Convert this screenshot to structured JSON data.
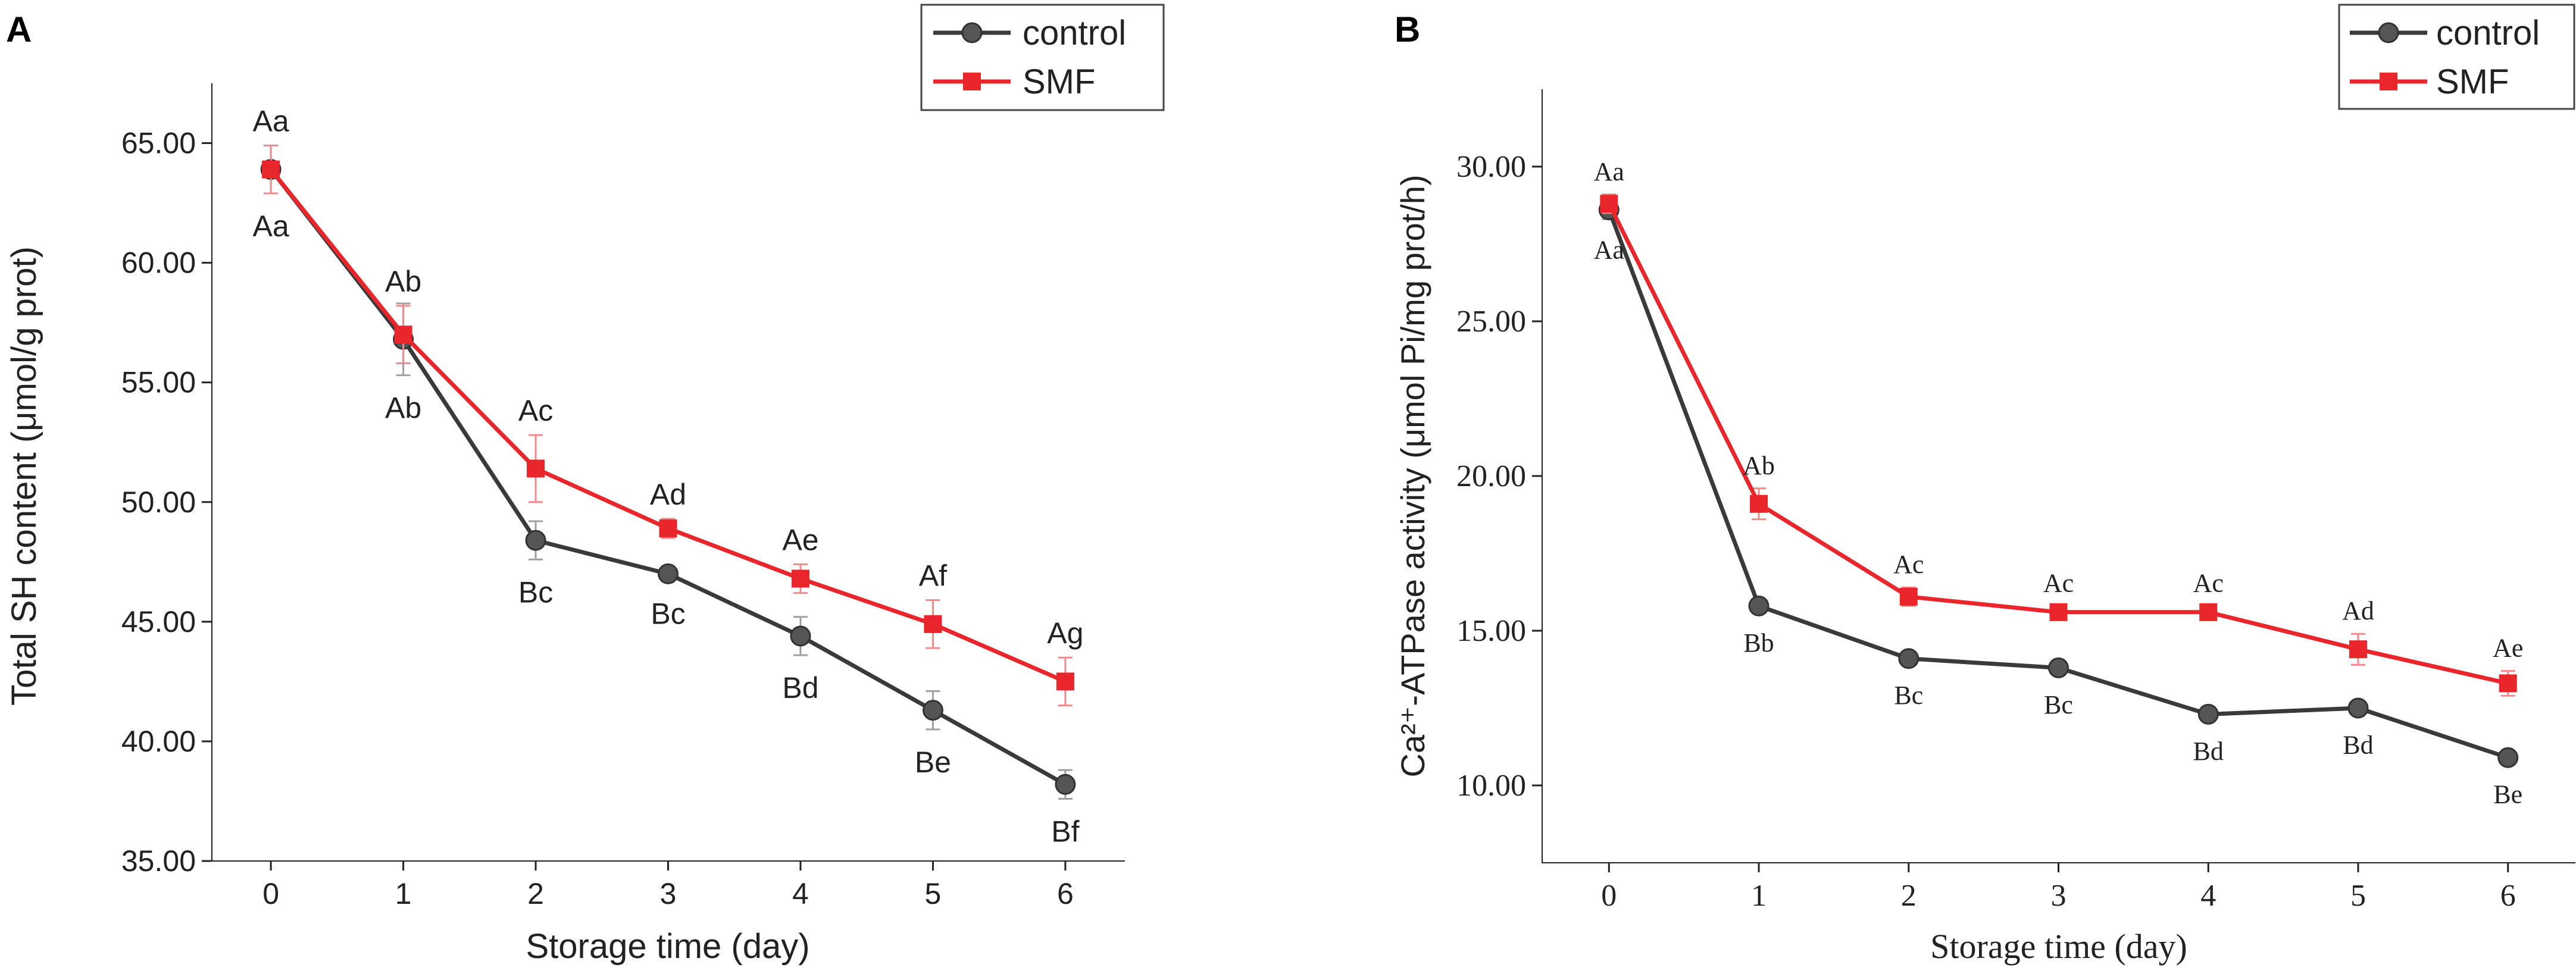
{
  "chart_data": [
    {
      "panel": "A",
      "type": "line",
      "xlabel": "Storage time (day)",
      "ylabel": "Total SH content (μmol/g prot)",
      "x": [
        0,
        1,
        2,
        3,
        4,
        5,
        6
      ],
      "xlim": [
        -0.45,
        6.45
      ],
      "ylim": [
        35,
        67.5
      ],
      "yticks": [
        35,
        40,
        45,
        50,
        55,
        60,
        65
      ],
      "yticklabels": [
        "35.00",
        "40.00",
        "45.00",
        "50.00",
        "55.00",
        "60.00",
        "65.00"
      ],
      "xticklabels": [
        "0",
        "1",
        "2",
        "3",
        "4",
        "5",
        "6"
      ],
      "legend_position": "top-right",
      "label_font": "sans",
      "series": [
        {
          "name": "control",
          "color": "#3a3a3a",
          "marker": "circle",
          "values": [
            63.9,
            56.8,
            48.4,
            47.0,
            44.4,
            41.3,
            38.2
          ],
          "errors": [
            1.0,
            1.5,
            0.8,
            0.3,
            0.8,
            0.8,
            0.6
          ],
          "letters": [
            "Aa",
            "Ab",
            "Bc",
            "Bc",
            "Bd",
            "Be",
            "Bf"
          ],
          "letter_side": "below"
        },
        {
          "name": "SMF",
          "color": "#e8262b",
          "marker": "square",
          "values": [
            63.9,
            57.0,
            51.4,
            48.9,
            46.8,
            44.9,
            42.5
          ],
          "errors": [
            1.0,
            1.2,
            1.4,
            0.4,
            0.6,
            1.0,
            1.0
          ],
          "letters": [
            "Aa",
            "Ab",
            "Ac",
            "Ad",
            "Ae",
            "Af",
            "Ag"
          ],
          "letter_side": "above"
        }
      ]
    },
    {
      "panel": "B",
      "type": "line",
      "xlabel": "Storage time (day)",
      "ylabel": "Ca²⁺-ATPase activity (μmol Pi/mg prot/h)",
      "x": [
        0,
        1,
        2,
        3,
        4,
        5,
        6
      ],
      "xlim": [
        -0.45,
        6.45
      ],
      "ylim": [
        7.5,
        32.5
      ],
      "yticks": [
        10,
        15,
        20,
        25,
        30
      ],
      "yticklabels": [
        "10.00",
        "15.00",
        "20.00",
        "25.00",
        "30.00"
      ],
      "xticklabels": [
        "0",
        "1",
        "2",
        "3",
        "4",
        "5",
        "6"
      ],
      "legend_position": "top-right",
      "label_font": "serif",
      "series": [
        {
          "name": "control",
          "color": "#3a3a3a",
          "marker": "circle",
          "values": [
            28.6,
            15.8,
            14.1,
            13.8,
            12.3,
            12.5,
            10.9
          ],
          "errors": [
            0.3,
            0.2,
            0.2,
            0.2,
            0.2,
            0.2,
            0.2
          ],
          "letters": [
            "Aa",
            "Bb",
            "Bc",
            "Bc",
            "Bd",
            "Bd",
            "Be"
          ],
          "letter_side": "below"
        },
        {
          "name": "SMF",
          "color": "#e8262b",
          "marker": "square",
          "values": [
            28.8,
            19.1,
            16.1,
            15.6,
            15.6,
            14.4,
            13.3
          ],
          "errors": [
            0.3,
            0.5,
            0.3,
            0.2,
            0.2,
            0.5,
            0.4
          ],
          "letters": [
            "Aa",
            "Ab",
            "Ac",
            "Ac",
            "Ac",
            "Ad",
            "Ae"
          ],
          "letter_side": "above"
        }
      ]
    }
  ]
}
